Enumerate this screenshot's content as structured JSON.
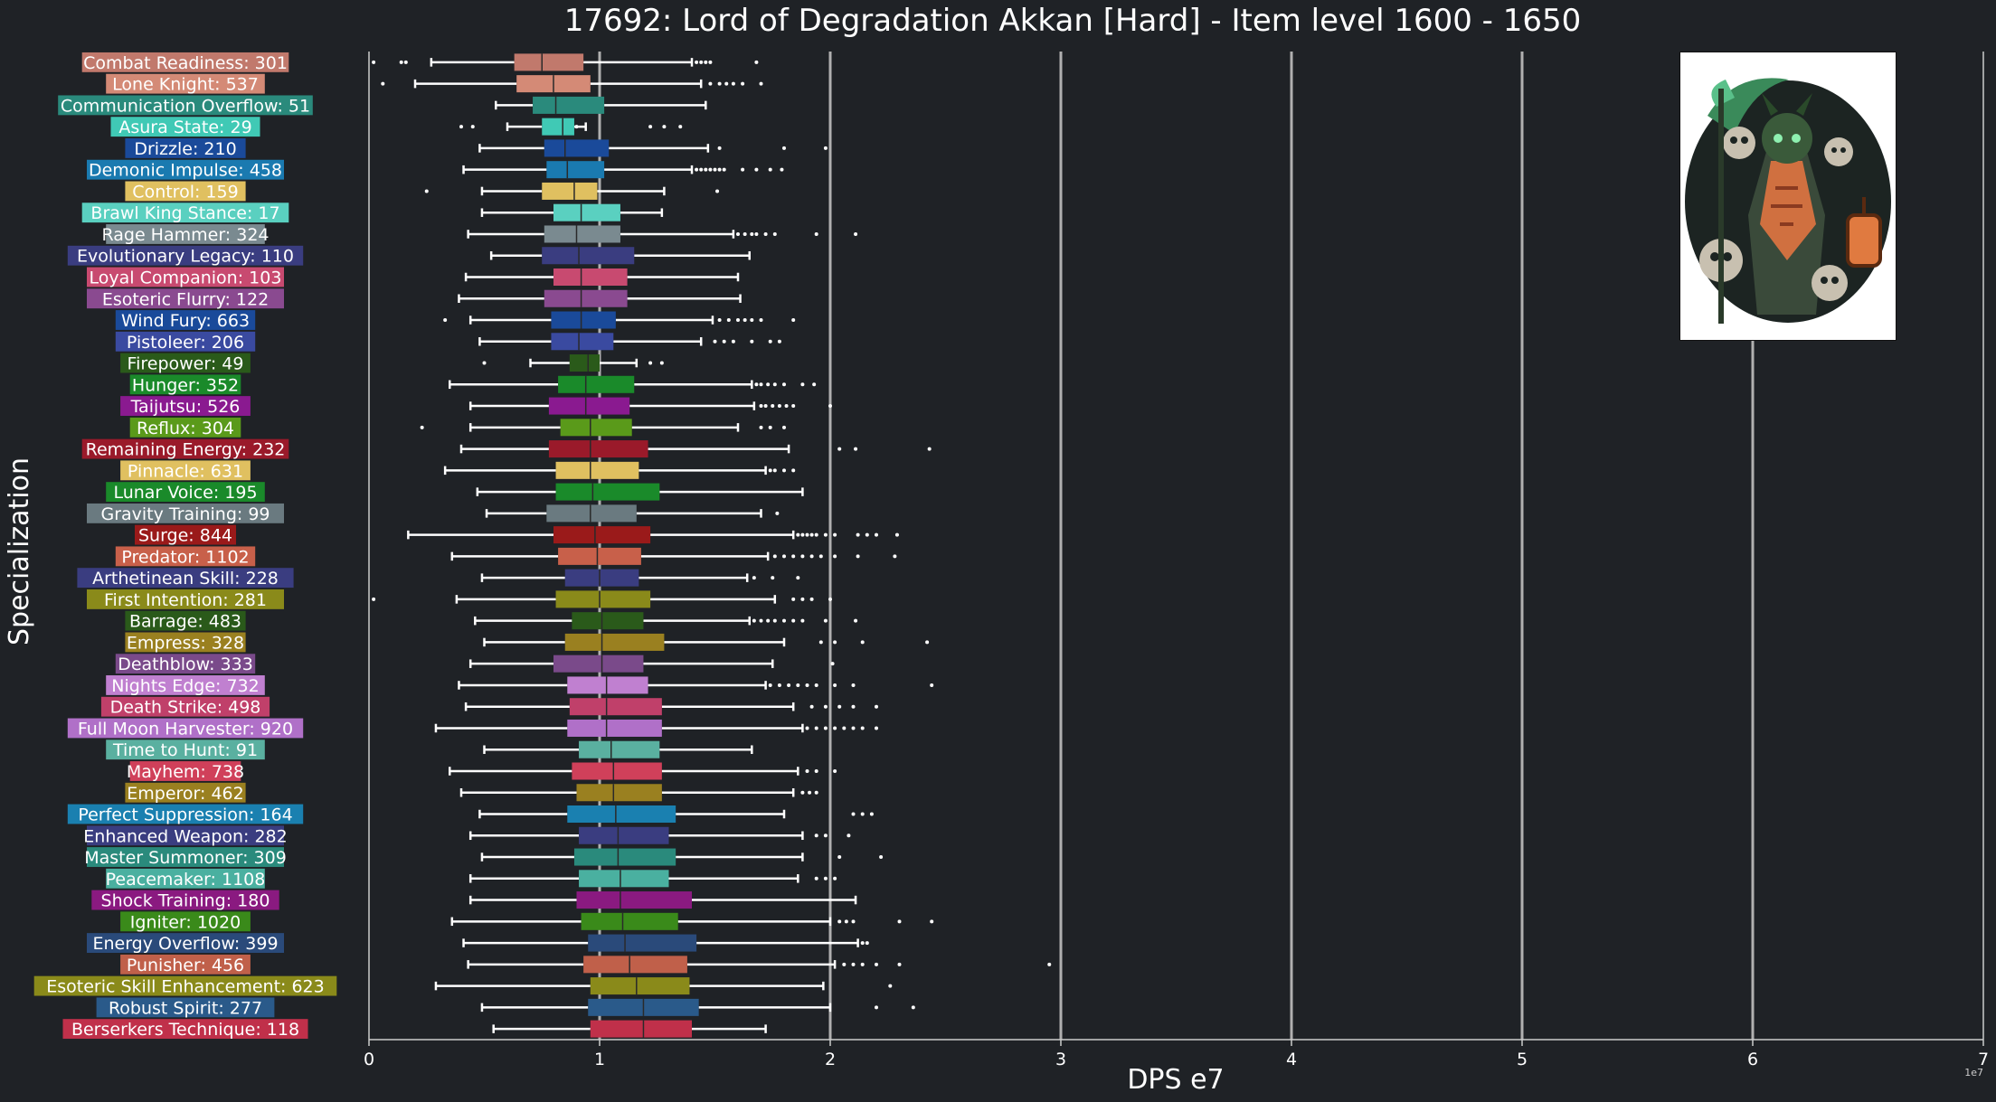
{
  "chart_data": {
    "type": "box",
    "title": "17692: Lord of Degradation Akkan [Hard] - Item level 1600 - 1650",
    "xlabel": "DPS e7",
    "ylabel": "Specialization",
    "x_scale_label": "1e7",
    "xlim": [
      0,
      7
    ],
    "xticks": [
      0,
      1,
      2,
      3,
      4,
      5,
      6,
      7
    ],
    "orientation": "horizontal",
    "grid": "vertical lines at major x ticks",
    "series": [
      {
        "name": "Combat Readiness: 301",
        "color": "#c1796c",
        "stats": [
          0.27,
          0.63,
          0.75,
          0.93,
          1.4
        ],
        "outliers": [
          0.02,
          0.14,
          0.16,
          1.42,
          1.44,
          1.46,
          1.48,
          1.68
        ]
      },
      {
        "name": "Lone Knight: 537",
        "color": "#d48a76",
        "stats": [
          0.2,
          0.64,
          0.8,
          0.96,
          1.44
        ],
        "outliers": [
          0.06,
          1.48,
          1.52,
          1.55,
          1.58,
          1.62,
          1.7
        ]
      },
      {
        "name": "Communication Overflow: 51",
        "color": "#2a8a7c",
        "stats": [
          0.55,
          0.71,
          0.81,
          1.02,
          1.46
        ],
        "outliers": []
      },
      {
        "name": "Asura State: 29",
        "color": "#40c9b5",
        "stats": [
          0.6,
          0.75,
          0.84,
          0.89,
          0.94
        ],
        "outliers": [
          0.4,
          0.45,
          0.9,
          1.22,
          1.28,
          1.35
        ]
      },
      {
        "name": "Drizzle: 210",
        "color": "#1a4a9a",
        "stats": [
          0.48,
          0.76,
          0.85,
          1.04,
          1.47
        ],
        "outliers": [
          1.52,
          1.8,
          1.98
        ]
      },
      {
        "name": "Demonic Impulse: 458",
        "color": "#1a7ab0",
        "stats": [
          0.41,
          0.77,
          0.86,
          1.02,
          1.4
        ],
        "outliers": [
          1.42,
          1.44,
          1.46,
          1.48,
          1.5,
          1.52,
          1.54,
          1.62,
          1.68,
          1.74,
          1.79
        ]
      },
      {
        "name": "Control: 159",
        "color": "#e0c060",
        "stats": [
          0.49,
          0.75,
          0.89,
          0.99,
          1.28
        ],
        "outliers": [
          0.25,
          1.51
        ]
      },
      {
        "name": "Brawl King Stance: 17",
        "color": "#5ad0c0",
        "stats": [
          0.49,
          0.8,
          0.92,
          1.09,
          1.27
        ],
        "outliers": []
      },
      {
        "name": "Rage Hammer: 324",
        "color": "#7a8a90",
        "stats": [
          0.43,
          0.76,
          0.9,
          1.09,
          1.58
        ],
        "outliers": [
          1.6,
          1.63,
          1.66,
          1.68,
          1.72,
          1.76,
          1.94,
          2.11
        ]
      },
      {
        "name": "Evolutionary Legacy: 110",
        "color": "#3a3d80",
        "stats": [
          0.53,
          0.75,
          0.91,
          1.15,
          1.65
        ],
        "outliers": []
      },
      {
        "name": "Loyal Companion: 103",
        "color": "#c84a70",
        "stats": [
          0.42,
          0.8,
          0.92,
          1.12,
          1.6
        ],
        "outliers": []
      },
      {
        "name": "Esoteric Flurry: 122",
        "color": "#8a4a90",
        "stats": [
          0.39,
          0.76,
          0.92,
          1.12,
          1.61
        ],
        "outliers": []
      },
      {
        "name": "Wind Fury: 663",
        "color": "#1a4a9a",
        "stats": [
          0.44,
          0.79,
          0.92,
          1.07,
          1.49
        ],
        "outliers": [
          0.33,
          1.52,
          1.56,
          1.6,
          1.63,
          1.66,
          1.7,
          1.84
        ]
      },
      {
        "name": "Pistoleer: 206",
        "color": "#3a4aa0",
        "stats": [
          0.48,
          0.79,
          0.91,
          1.06,
          1.44
        ],
        "outliers": [
          1.5,
          1.54,
          1.58,
          1.66,
          1.74,
          1.78
        ]
      },
      {
        "name": "Firepower: 49",
        "color": "#2a5a1a",
        "stats": [
          0.7,
          0.87,
          0.95,
          1.0,
          1.16
        ],
        "outliers": [
          0.5,
          1.22,
          1.27
        ]
      },
      {
        "name": "Hunger: 352",
        "color": "#1a8a2a",
        "stats": [
          0.35,
          0.82,
          0.94,
          1.15,
          1.66
        ],
        "outliers": [
          1.68,
          1.7,
          1.73,
          1.76,
          1.8,
          1.88,
          1.93
        ]
      },
      {
        "name": "Taijutsu: 526",
        "color": "#8a1a90",
        "stats": [
          0.44,
          0.78,
          0.94,
          1.13,
          1.67
        ],
        "outliers": [
          1.7,
          1.72,
          1.75,
          1.78,
          1.81,
          1.84,
          2.0
        ]
      },
      {
        "name": "Reflux: 304",
        "color": "#5a9a1a",
        "stats": [
          0.44,
          0.83,
          0.96,
          1.14,
          1.6
        ],
        "outliers": [
          0.23,
          1.7,
          1.74,
          1.8
        ]
      },
      {
        "name": "Remaining Energy: 232",
        "color": "#9a1a2a",
        "stats": [
          0.4,
          0.78,
          0.96,
          1.21,
          1.82
        ],
        "outliers": [
          2.04,
          2.11,
          2.43
        ]
      },
      {
        "name": "Pinnacle: 631",
        "color": "#e0c060",
        "stats": [
          0.33,
          0.81,
          0.96,
          1.17,
          1.72
        ],
        "outliers": [
          1.74,
          1.76,
          1.8,
          1.84
        ]
      },
      {
        "name": "Lunar Voice: 195",
        "color": "#1a8a2a",
        "stats": [
          0.47,
          0.81,
          0.97,
          1.26,
          1.88
        ],
        "outliers": []
      },
      {
        "name": "Gravity Training: 99",
        "color": "#6a7a80",
        "stats": [
          0.51,
          0.77,
          0.96,
          1.16,
          1.7
        ],
        "outliers": [
          1.77
        ]
      },
      {
        "name": "Surge: 844",
        "color": "#9a1a1a",
        "stats": [
          0.17,
          0.8,
          0.98,
          1.22,
          1.84
        ],
        "outliers": [
          1.86,
          1.88,
          1.9,
          1.92,
          1.94,
          1.98,
          2.02,
          2.12,
          2.16,
          2.2,
          2.29
        ]
      },
      {
        "name": "Predator: 1102",
        "color": "#c8604a",
        "stats": [
          0.36,
          0.82,
          0.99,
          1.18,
          1.73
        ],
        "outliers": [
          1.76,
          1.8,
          1.84,
          1.88,
          1.92,
          1.96,
          2.02,
          2.12,
          2.28
        ]
      },
      {
        "name": "Arthetinean Skill: 228",
        "color": "#3a3d80",
        "stats": [
          0.49,
          0.85,
          1.0,
          1.17,
          1.64
        ],
        "outliers": [
          1.67,
          1.75,
          1.86
        ]
      },
      {
        "name": "First Intention: 281",
        "color": "#8a8a1a",
        "stats": [
          0.38,
          0.81,
          1.0,
          1.22,
          1.76
        ],
        "outliers": [
          0.02,
          1.84,
          1.88,
          1.92,
          2.0
        ]
      },
      {
        "name": "Barrage: 483",
        "color": "#2a5a1a",
        "stats": [
          0.46,
          0.88,
          1.01,
          1.19,
          1.65
        ],
        "outliers": [
          1.67,
          1.7,
          1.73,
          1.76,
          1.8,
          1.84,
          1.88,
          1.98,
          2.11
        ]
      },
      {
        "name": "Empress: 328",
        "color": "#9a8020",
        "stats": [
          0.5,
          0.85,
          1.01,
          1.28,
          1.8
        ],
        "outliers": [
          1.96,
          2.02,
          2.14,
          2.42
        ]
      },
      {
        "name": "Deathblow: 333",
        "color": "#7a4a8a",
        "stats": [
          0.44,
          0.8,
          1.01,
          1.19,
          1.75
        ],
        "outliers": [
          2.01
        ]
      },
      {
        "name": "Nights Edge: 732",
        "color": "#c080d0",
        "stats": [
          0.39,
          0.86,
          1.03,
          1.21,
          1.72
        ],
        "outliers": [
          1.74,
          1.78,
          1.82,
          1.86,
          1.9,
          1.94,
          2.02,
          2.1,
          2.44
        ]
      },
      {
        "name": "Death Strike: 498",
        "color": "#c0406a",
        "stats": [
          0.42,
          0.87,
          1.03,
          1.27,
          1.84
        ],
        "outliers": [
          1.92,
          1.98,
          2.04,
          2.1,
          2.2
        ]
      },
      {
        "name": "Full Moon Harvester: 920",
        "color": "#b070c8",
        "stats": [
          0.29,
          0.86,
          1.03,
          1.27,
          1.88
        ],
        "outliers": [
          1.9,
          1.94,
          1.98,
          2.02,
          2.06,
          2.1,
          2.14,
          2.2
        ]
      },
      {
        "name": "Time to Hunt: 91",
        "color": "#5ab0a0",
        "stats": [
          0.5,
          0.91,
          1.05,
          1.26,
          1.66
        ],
        "outliers": []
      },
      {
        "name": "Mayhem: 738",
        "color": "#d0405a",
        "stats": [
          0.35,
          0.88,
          1.06,
          1.27,
          1.86
        ],
        "outliers": [
          1.9,
          1.94,
          2.02
        ]
      },
      {
        "name": "Emperor: 462",
        "color": "#9a8020",
        "stats": [
          0.4,
          0.9,
          1.06,
          1.27,
          1.84
        ],
        "outliers": [
          1.88,
          1.91,
          1.94
        ]
      },
      {
        "name": "Perfect Suppression: 164",
        "color": "#1a80b0",
        "stats": [
          0.48,
          0.86,
          1.07,
          1.33,
          1.8
        ],
        "outliers": [
          2.1,
          2.14,
          2.18
        ]
      },
      {
        "name": "Enhanced Weapon: 282",
        "color": "#3a3d80",
        "stats": [
          0.44,
          0.91,
          1.08,
          1.3,
          1.88
        ],
        "outliers": [
          1.94,
          1.98,
          2.08
        ]
      },
      {
        "name": "Master Summoner: 309",
        "color": "#2a8a7c",
        "stats": [
          0.49,
          0.89,
          1.08,
          1.33,
          1.88
        ],
        "outliers": [
          2.04,
          2.22
        ]
      },
      {
        "name": "Peacemaker: 1108",
        "color": "#4ab0a0",
        "stats": [
          0.44,
          0.91,
          1.09,
          1.3,
          1.86
        ],
        "outliers": [
          1.94,
          1.98,
          2.02
        ]
      },
      {
        "name": "Shock Training: 180",
        "color": "#8a1a80",
        "stats": [
          0.44,
          0.9,
          1.09,
          1.4,
          2.11
        ],
        "outliers": []
      },
      {
        "name": "Igniter: 1020",
        "color": "#3a8a1a",
        "stats": [
          0.36,
          0.92,
          1.1,
          1.34,
          2.0
        ],
        "outliers": [
          2.04,
          2.07,
          2.1,
          2.3,
          2.44
        ]
      },
      {
        "name": "Energy Overflow: 399",
        "color": "#2a4a7a",
        "stats": [
          0.41,
          0.95,
          1.11,
          1.42,
          2.12
        ],
        "outliers": [
          2.14,
          2.16
        ]
      },
      {
        "name": "Punisher: 456",
        "color": "#c0604a",
        "stats": [
          0.43,
          0.93,
          1.13,
          1.38,
          2.02
        ],
        "outliers": [
          2.06,
          2.1,
          2.14,
          2.2,
          2.3,
          2.95
        ]
      },
      {
        "name": "Esoteric Skill Enhancement: 623",
        "color": "#8a8a1a",
        "stats": [
          0.29,
          0.96,
          1.16,
          1.39,
          1.97
        ],
        "outliers": [
          2.26
        ]
      },
      {
        "name": "Robust Spirit: 277",
        "color": "#2a5a8a",
        "stats": [
          0.49,
          0.95,
          1.19,
          1.43,
          2.0
        ],
        "outliers": [
          2.2,
          2.36
        ]
      },
      {
        "name": "Berserkers Technique: 118",
        "color": "#c0304a",
        "stats": [
          0.54,
          0.96,
          1.19,
          1.4,
          1.72
        ],
        "outliers": []
      }
    ]
  }
}
